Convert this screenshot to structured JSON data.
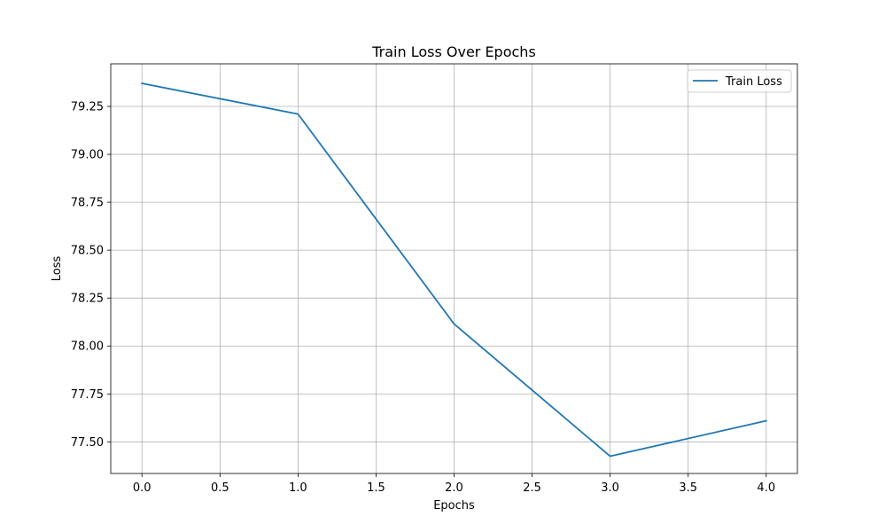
{
  "chart_data": {
    "type": "line",
    "title": "Train Loss Over Epochs",
    "xlabel": "Epochs",
    "ylabel": "Loss",
    "x": [
      0,
      1,
      2,
      3,
      4
    ],
    "series": [
      {
        "name": "Train Loss",
        "color": "#1f77b4",
        "values": [
          79.37,
          79.21,
          78.115,
          77.425,
          77.61
        ]
      }
    ],
    "xlim": [
      -0.2,
      4.2
    ],
    "ylim": [
      77.335,
      79.472
    ],
    "xticks": [
      0.0,
      0.5,
      1.0,
      1.5,
      2.0,
      2.5,
      3.0,
      3.5,
      4.0
    ],
    "xtick_labels": [
      "0.0",
      "0.5",
      "1.0",
      "1.5",
      "2.0",
      "2.5",
      "3.0",
      "3.5",
      "4.0"
    ],
    "yticks": [
      77.5,
      77.75,
      78.0,
      78.25,
      78.5,
      78.75,
      79.0,
      79.25
    ],
    "ytick_labels": [
      "77.50",
      "77.75",
      "78.00",
      "78.25",
      "78.50",
      "78.75",
      "79.00",
      "79.25"
    ],
    "grid": true,
    "legend_position": "top-right"
  }
}
